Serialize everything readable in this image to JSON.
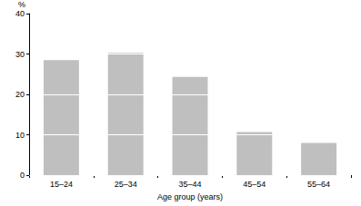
{
  "chart_data": {
    "type": "bar",
    "x_label": "Age group (years)",
    "y_label": "%",
    "categories": [
      "15–24",
      "25–34",
      "35–44",
      "45–54",
      "55–64"
    ],
    "values": [
      28.5,
      30.3,
      24.3,
      10.7,
      8.0
    ],
    "color": "#bfbfbf",
    "ylim": [
      0,
      40
    ],
    "yticks": [
      0,
      10,
      20,
      30,
      40
    ],
    "grid": true
  }
}
